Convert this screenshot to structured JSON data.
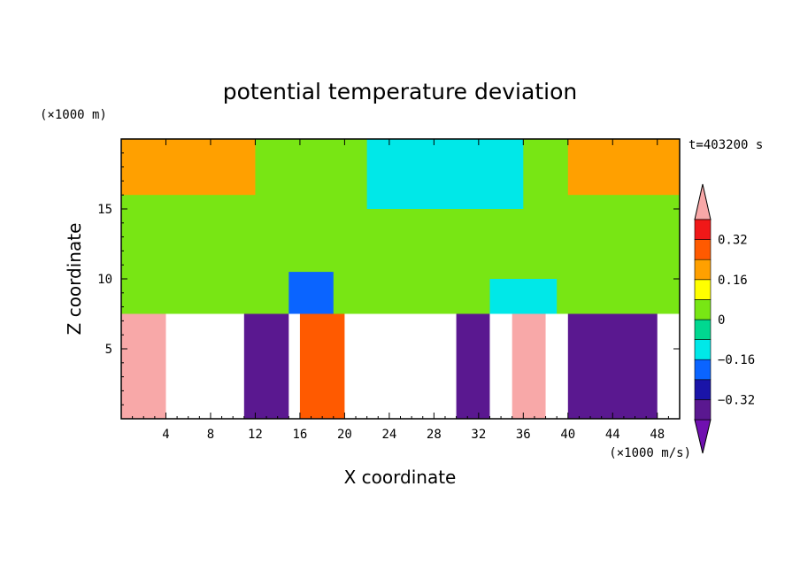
{
  "chart_data": {
    "type": "heatmap",
    "title": "potential temperature deviation",
    "xlabel": "X coordinate",
    "ylabel": "Z coordinate",
    "x_unit": "(×1000 m/s)",
    "y_unit": "(×1000 m)",
    "time_label": "t=403200 s",
    "xlim": [
      0,
      50
    ],
    "ylim": [
      0,
      20
    ],
    "x_ticks": [
      4,
      8,
      12,
      16,
      20,
      24,
      28,
      32,
      36,
      40,
      44,
      48
    ],
    "y_ticks": [
      5,
      10,
      15
    ],
    "colorbar": {
      "levels": [
        -0.4,
        -0.32,
        -0.24,
        -0.16,
        -0.08,
        0,
        0.08,
        0.16,
        0.24,
        0.32,
        0.4
      ],
      "tick_values": [
        0.32,
        0.16,
        0,
        -0.16,
        -0.32
      ],
      "tick_labels": [
        "0.32",
        "0.16",
        "0",
        "−0.16",
        "−0.32"
      ],
      "colors": [
        "#7010b0",
        "#5a1890",
        "#1a14a8",
        "#0a64ff",
        "#00e8e8",
        "#00d890",
        "#78e614",
        "#ffff00",
        "#ffa000",
        "#ff5a00",
        "#f01818",
        "#f8a8a8"
      ]
    },
    "regions": [
      {
        "band": "stratosphere",
        "z_range": [
          7.5,
          20
        ],
        "x_range": [
          0,
          50
        ],
        "value": 0.06
      },
      {
        "band": "upper-anomaly",
        "z_range": [
          16,
          20
        ],
        "x_range": [
          0,
          12
        ],
        "value": 0.16
      },
      {
        "band": "upper-anomaly",
        "z_range": [
          15,
          20
        ],
        "x_range": [
          22,
          36
        ],
        "value": -0.12
      },
      {
        "band": "upper-anomaly",
        "z_range": [
          16,
          20
        ],
        "x_range": [
          40,
          50
        ],
        "value": 0.16
      },
      {
        "band": "upper-anomaly",
        "z_range": [
          7.5,
          10.5
        ],
        "x_range": [
          15,
          19
        ],
        "value": -0.24
      },
      {
        "band": "upper-anomaly",
        "z_range": [
          7.5,
          10
        ],
        "x_range": [
          33,
          39
        ],
        "value": -0.16
      },
      {
        "band": "troposphere",
        "z_range": [
          0,
          7.5
        ],
        "x_range": [
          0,
          4
        ],
        "value": 0.4
      },
      {
        "band": "troposphere",
        "z_range": [
          0,
          7.5
        ],
        "x_range": [
          11,
          15
        ],
        "value": -0.4
      },
      {
        "band": "troposphere",
        "z_range": [
          0,
          7.5
        ],
        "x_range": [
          16,
          20
        ],
        "value": 0.3
      },
      {
        "band": "troposphere",
        "z_range": [
          0,
          7.5
        ],
        "x_range": [
          30,
          33
        ],
        "value": -0.4
      },
      {
        "band": "troposphere",
        "z_range": [
          0,
          7.5
        ],
        "x_range": [
          35,
          38
        ],
        "value": 0.4
      },
      {
        "band": "troposphere",
        "z_range": [
          0,
          7.5
        ],
        "x_range": [
          40,
          48
        ],
        "value": -0.4
      }
    ]
  }
}
